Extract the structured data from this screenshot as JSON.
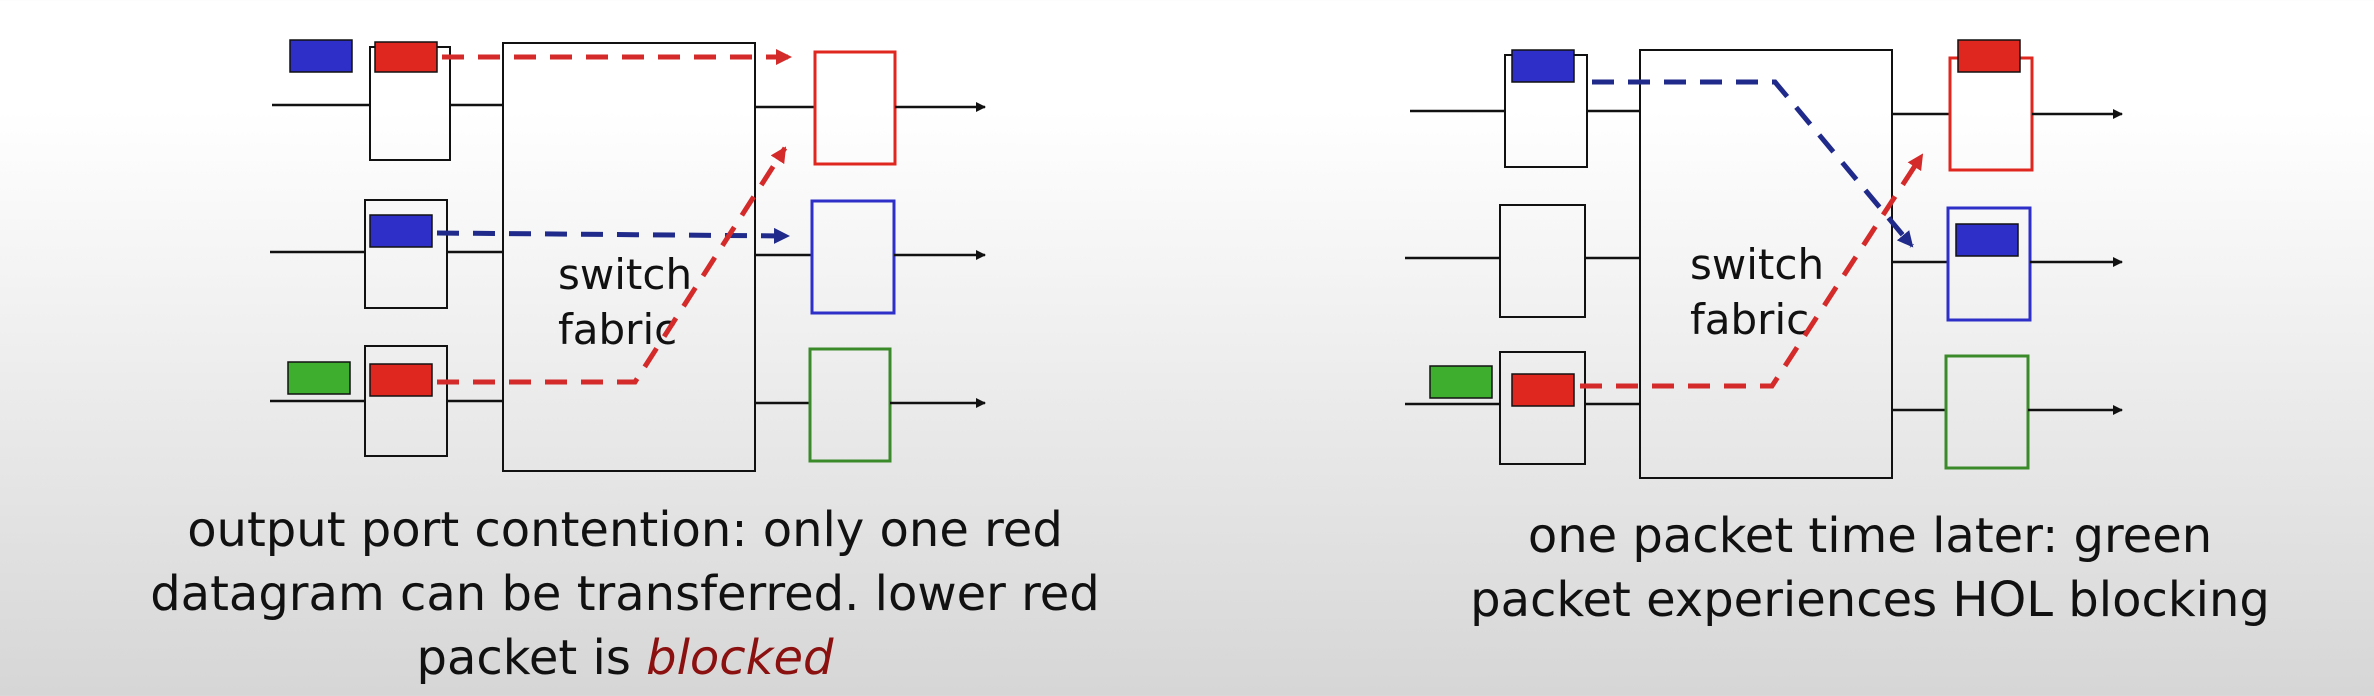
{
  "colors": {
    "red": "#e0271f",
    "blue": "#2d2fc8",
    "green": "#3eae2e",
    "red_dash": "#d42a2a",
    "blue_dash": "#1f2a8a",
    "blocked_text": "#8b1010"
  },
  "left_diagram": {
    "fabric_label_line1": "switch",
    "fabric_label_line2": "fabric",
    "caption_line1": "output port contention: only one red",
    "caption_line2": "datagram can be transferred. lower red",
    "caption_line3_prefix": "packet is",
    "caption_line3_emphasis": "blocked"
  },
  "right_diagram": {
    "fabric_label_line1": "switch",
    "fabric_label_line2": "fabric",
    "caption_line1": "one packet time later: green",
    "caption_line2": "packet experiences HOL blocking"
  }
}
